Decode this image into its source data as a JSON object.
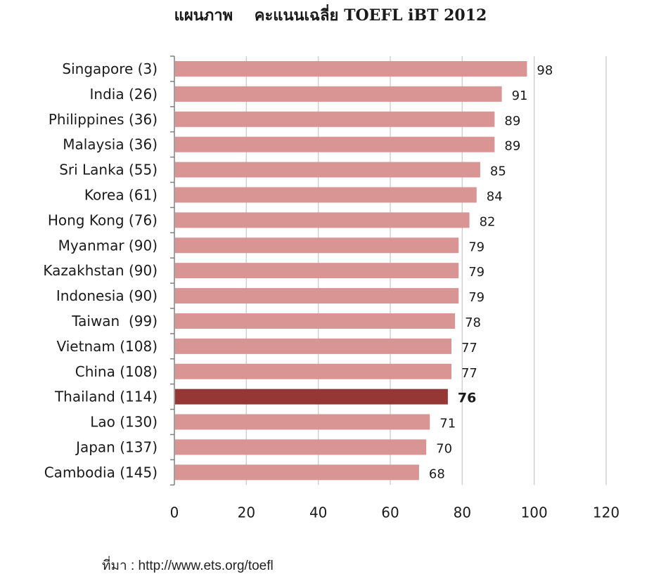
{
  "chart_data": {
    "type": "bar",
    "orientation": "horizontal",
    "title": "แผนภาพ    คะแนนเฉลี่ย TOEFL iBT 2012",
    "categories": [
      "Singapore (3)",
      "India (26)",
      "Philippines (36)",
      "Malaysia (36)",
      "Sri Lanka (55)",
      "Korea (61)",
      "Hong Kong (76)",
      "Myanmar (90)",
      "Kazakhstan (90)",
      "Indonesia (90)",
      "Taiwan  (99)",
      "Vietnam (108)",
      "China (108)",
      "Thailand (114)",
      "Lao (130)",
      "Japan (137)",
      "Cambodia (145)"
    ],
    "values": [
      98,
      91,
      89,
      89,
      85,
      84,
      82,
      79,
      79,
      79,
      78,
      77,
      77,
      76,
      71,
      70,
      68
    ],
    "highlight_category": "Thailand (114)",
    "xlim": [
      0,
      120
    ],
    "xticks": [
      0,
      20,
      40,
      60,
      80,
      100,
      120
    ],
    "grid": "vertical",
    "colors": {
      "bar": "#d99594",
      "highlight": "#953735",
      "grid": "#d0d0d0",
      "axis": "#808080"
    }
  },
  "source": "ที่มา : http://www.ets.org/toefl"
}
